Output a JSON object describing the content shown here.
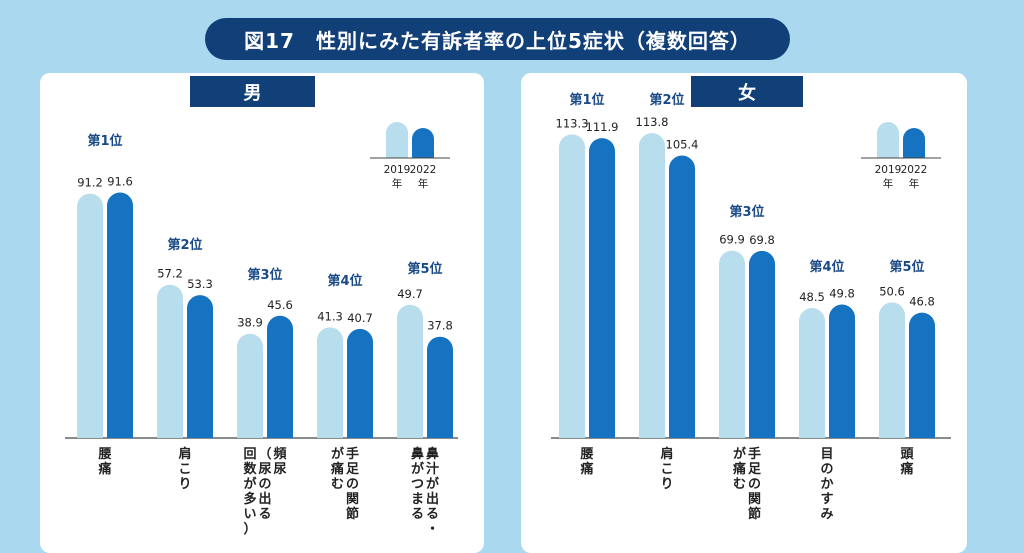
{
  "page_title": "図17　性別にみた有訴者率の上位5症状（複数回答）",
  "legend": {
    "label_2019": "2019",
    "label_2022": "2022",
    "year_suffix": "年"
  },
  "colors": {
    "y2019": "#b8dded",
    "y2022": "#1573c1",
    "rank_text": "#1a4a86",
    "title_bg": "#113f78"
  },
  "chart_data": [
    {
      "type": "bar",
      "panel": "男",
      "categories": [
        "腰痛",
        "肩こり",
        "頻尿（尿の出る回数が多い）",
        "手足の関節が痛む",
        "鼻汁が出る・鼻がつまる"
      ],
      "category_lines": [
        [
          [
            "腰",
            "痛"
          ]
        ],
        [
          [
            "肩",
            "こ",
            "り"
          ]
        ],
        [
          [
            "頻",
            "尿"
          ],
          [
            "（",
            "尿",
            "の",
            "出",
            "る"
          ],
          [
            "回",
            "数",
            "が",
            "多",
            "い",
            "）"
          ]
        ],
        [
          [
            "手",
            "足",
            "の",
            "関",
            "節"
          ],
          [
            "が",
            "痛",
            "む"
          ]
        ],
        [
          [
            "鼻",
            "汁",
            "が",
            "出",
            "る",
            "・"
          ],
          [
            "鼻",
            "が",
            "つ",
            "ま",
            "る"
          ]
        ]
      ],
      "ranks": [
        "第1位",
        "第2位",
        "第3位",
        "第4位",
        "第5位"
      ],
      "series": [
        {
          "name": "2019年",
          "values": [
            91.2,
            57.2,
            38.9,
            41.3,
            49.7
          ]
        },
        {
          "name": "2022年",
          "values": [
            91.6,
            53.3,
            45.6,
            40.7,
            37.8
          ]
        }
      ]
    },
    {
      "type": "bar",
      "panel": "女",
      "categories": [
        "腰痛",
        "肩こり",
        "手足の関節が痛む",
        "目のかすみ",
        "頭痛"
      ],
      "category_lines": [
        [
          [
            "腰",
            "痛"
          ]
        ],
        [
          [
            "肩",
            "こ",
            "り"
          ]
        ],
        [
          [
            "手",
            "足",
            "の",
            "関",
            "節"
          ],
          [
            "が",
            "痛",
            "む"
          ]
        ],
        [
          [
            "目",
            "の",
            "か",
            "す",
            "み"
          ]
        ],
        [
          [
            "頭",
            "痛"
          ]
        ]
      ],
      "ranks": [
        "第1位",
        "第2位",
        "第3位",
        "第4位",
        "第5位"
      ],
      "series": [
        {
          "name": "2019年",
          "values": [
            113.3,
            113.8,
            69.9,
            48.5,
            50.6
          ]
        },
        {
          "name": "2022年",
          "values": [
            111.9,
            105.4,
            69.8,
            49.8,
            46.8
          ]
        }
      ]
    }
  ]
}
